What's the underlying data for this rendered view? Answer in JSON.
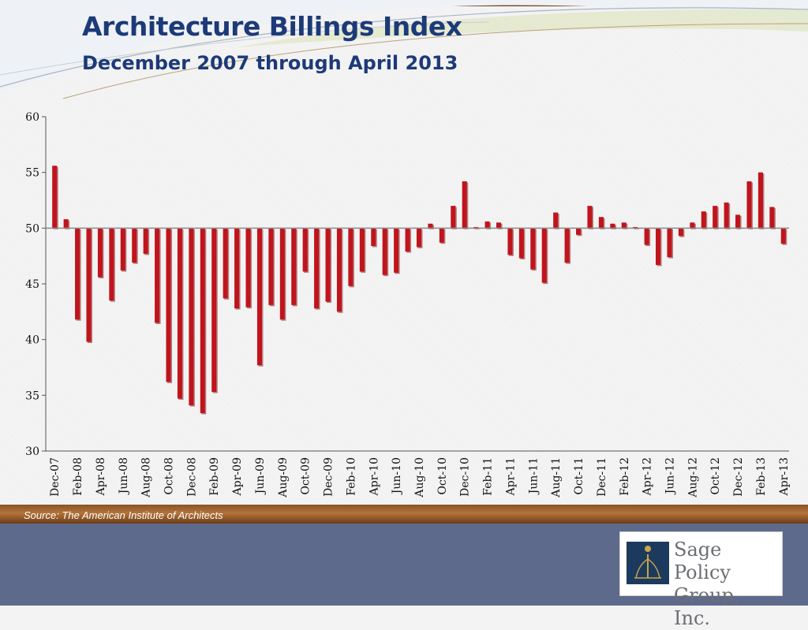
{
  "title": "Architecture Billings Index",
  "subtitle": "December 2007 through April 2013",
  "source": "Source:  The American Institute of Architects",
  "logo": {
    "line1": "Sage Policy",
    "line2": "Group, Inc."
  },
  "colors": {
    "bar": "#c0141c",
    "bar_shadow": "#7a0b10",
    "title": "#1d3a78",
    "footer": "#b3743a",
    "panel": "#5d6a8c"
  },
  "chart_data": {
    "type": "bar",
    "title": "Architecture Billings Index",
    "subtitle": "December 2007 through April 2013",
    "baseline": 50,
    "ylim": [
      30,
      60
    ],
    "yticks": [
      30,
      35,
      40,
      45,
      50,
      55,
      60
    ],
    "grid": false,
    "tick_labels": [
      "Dec-07",
      "Feb-08",
      "Apr-08",
      "Jun-08",
      "Aug-08",
      "Oct-08",
      "Dec-08",
      "Feb-09",
      "Apr-09",
      "Jun-09",
      "Aug-09",
      "Oct-09",
      "Dec-09",
      "Feb-10",
      "Apr-10",
      "Jun-10",
      "Aug-10",
      "Oct-10",
      "Dec-10",
      "Feb-11",
      "Apr-11",
      "Jun-11",
      "Aug-11",
      "Oct-11",
      "Dec-11",
      "Feb-12",
      "Apr-12",
      "Jun-12",
      "Aug-12",
      "Oct-12",
      "Dec-12",
      "Feb-13",
      "Apr-13"
    ],
    "categories": [
      "Dec-07",
      "Jan-08",
      "Feb-08",
      "Mar-08",
      "Apr-08",
      "May-08",
      "Jun-08",
      "Jul-08",
      "Aug-08",
      "Sep-08",
      "Oct-08",
      "Nov-08",
      "Dec-08",
      "Jan-09",
      "Feb-09",
      "Mar-09",
      "Apr-09",
      "May-09",
      "Jun-09",
      "Jul-09",
      "Aug-09",
      "Sep-09",
      "Oct-09",
      "Nov-09",
      "Dec-09",
      "Jan-10",
      "Feb-10",
      "Mar-10",
      "Apr-10",
      "May-10",
      "Jun-10",
      "Jul-10",
      "Aug-10",
      "Sep-10",
      "Oct-10",
      "Nov-10",
      "Dec-10",
      "Jan-11",
      "Feb-11",
      "Mar-11",
      "Apr-11",
      "May-11",
      "Jun-11",
      "Jul-11",
      "Aug-11",
      "Sep-11",
      "Oct-11",
      "Nov-11",
      "Dec-11",
      "Jan-12",
      "Feb-12",
      "Mar-12",
      "Apr-12",
      "May-12",
      "Jun-12",
      "Jul-12",
      "Aug-12",
      "Sep-12",
      "Oct-12",
      "Nov-12",
      "Dec-12",
      "Jan-13",
      "Feb-13",
      "Mar-13",
      "Apr-13"
    ],
    "values": [
      55.6,
      50.8,
      41.8,
      39.8,
      45.6,
      43.5,
      46.2,
      46.9,
      47.7,
      41.5,
      36.2,
      34.7,
      34.1,
      33.4,
      35.3,
      43.7,
      42.8,
      42.9,
      37.7,
      43.1,
      41.8,
      43.1,
      46.1,
      42.8,
      43.4,
      42.5,
      44.8,
      46.1,
      48.4,
      45.8,
      46.0,
      47.9,
      48.3,
      50.4,
      48.7,
      52.0,
      54.2,
      50.1,
      50.6,
      50.5,
      47.6,
      47.3,
      46.3,
      45.1,
      51.4,
      46.9,
      49.4,
      52.0,
      51.0,
      50.4,
      50.5,
      50.1,
      48.5,
      46.7,
      47.4,
      49.3,
      50.5,
      51.5,
      52.0,
      52.3,
      51.2,
      54.2,
      55.0,
      51.9,
      48.6
    ]
  }
}
